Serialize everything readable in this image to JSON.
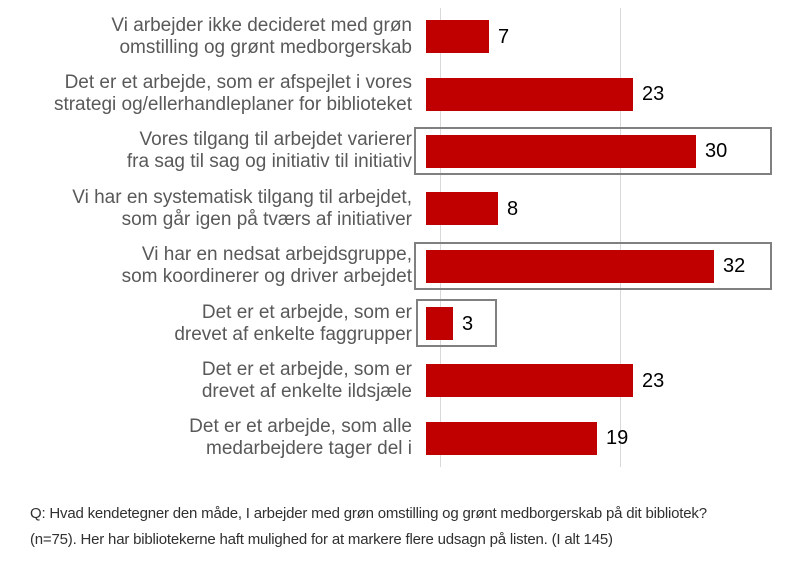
{
  "chart_data": {
    "type": "bar",
    "orientation": "horizontal",
    "title": "",
    "xlabel": "",
    "ylabel": "",
    "xlim": [
      0,
      38
    ],
    "x_gridlines": [
      0,
      20
    ],
    "legend": null,
    "bar_color": "#c00000",
    "grid_color": "#d9d9d9",
    "category_label_color": "#595959",
    "value_label_color": "#000000",
    "highlight_border_color": "#808080",
    "categories": [
      "Vi arbejder ikke decideret med grøn omstilling og grønt medborgerskab",
      "Det er et arbejde, som er afspejlet i vores strategi og/ellerhandleplaner for biblioteket",
      "Vores tilgang til arbejdet varierer fra sag til sag og initiativ til initiativ",
      "Vi har en systematisk tilgang til arbejdet, som går igen på tværs af initiativer",
      "Vi har en nedsat arbejdsgruppe, som koordinerer og driver arbejdet",
      "Det er et arbejde, som er drevet af enkelte faggrupper",
      "Det er et arbejde, som er drevet af enkelte ildsjæle",
      "Det er et arbejde, som alle medarbejdere tager del i"
    ],
    "values": [
      7,
      23,
      30,
      8,
      32,
      3,
      23,
      19
    ],
    "rows": [
      {
        "label_lines": [
          "Vi arbejder ikke decideret med grøn",
          "omstilling og grønt medborgerskab"
        ],
        "value": 7,
        "highlight": "none"
      },
      {
        "label_lines": [
          "Det er et arbejde, som er afspejlet i vores",
          "strategi og/ellerhandleplaner for biblioteket"
        ],
        "value": 23,
        "highlight": "none"
      },
      {
        "label_lines": [
          "Vores tilgang til arbejdet varierer",
          "fra sag til sag og initiativ til initiativ"
        ],
        "value": 30,
        "highlight": "full"
      },
      {
        "label_lines": [
          "Vi har en systematisk tilgang til arbejdet,",
          "som går igen på tværs af initiativer"
        ],
        "value": 8,
        "highlight": "none"
      },
      {
        "label_lines": [
          "Vi har en nedsat arbejdsgruppe,",
          "som koordinerer og driver arbejdet"
        ],
        "value": 32,
        "highlight": "full"
      },
      {
        "label_lines": [
          "Det er et arbejde, som er",
          "drevet af enkelte faggrupper"
        ],
        "value": 3,
        "highlight": "bar"
      },
      {
        "label_lines": [
          "Det er et arbejde, som er",
          "drevet af enkelte ildsjæle"
        ],
        "value": 23,
        "highlight": "none"
      },
      {
        "label_lines": [
          "Det er et arbejde, som alle",
          "medarbejdere tager del i"
        ],
        "value": 19,
        "highlight": "none"
      }
    ]
  },
  "footer": {
    "lines": [
      "Q: Hvad kendetegner den måde, I arbejder med grøn omstilling og grønt medborgerskab på dit bibliotek?",
      "(n=75). Her har bibliotekerne haft mulighed for at markere flere udsagn på listen. (I alt 145)"
    ],
    "text": "Q: Hvad kendetegner den måde, I arbejder med grøn omstilling og grønt medborgerskab på dit bibliotek? (n=75). Her har bibliotekerne haft mulighed for at markere flere udsagn på listen. (I alt 145)"
  }
}
